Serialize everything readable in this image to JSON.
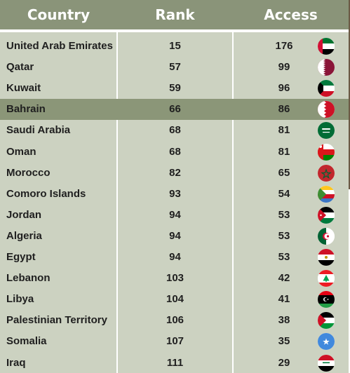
{
  "header": {
    "country": "Country",
    "rank": "Rank",
    "access": "Access"
  },
  "rows": [
    {
      "country": "United Arab Emirates",
      "rank": "15",
      "access": "176",
      "flag": "uae-flag-icon"
    },
    {
      "country": "Qatar",
      "rank": "57",
      "access": "99",
      "flag": "qatar-flag-icon"
    },
    {
      "country": "Kuwait",
      "rank": "59",
      "access": "96",
      "flag": "kuwait-flag-icon"
    },
    {
      "country": "Bahrain",
      "rank": "66",
      "access": "86",
      "flag": "bahrain-flag-icon",
      "highlighted": true
    },
    {
      "country": "Saudi Arabia",
      "rank": "68",
      "access": "81",
      "flag": "saudi-arabia-flag-icon"
    },
    {
      "country": "Oman",
      "rank": "68",
      "access": "81",
      "flag": "oman-flag-icon"
    },
    {
      "country": "Morocco",
      "rank": "82",
      "access": "65",
      "flag": "morocco-flag-icon"
    },
    {
      "country": "Comoro Islands",
      "rank": "93",
      "access": "54",
      "flag": "comoros-flag-icon"
    },
    {
      "country": "Jordan",
      "rank": "94",
      "access": "53",
      "flag": "jordan-flag-icon"
    },
    {
      "country": "Algeria",
      "rank": "94",
      "access": "53",
      "flag": "algeria-flag-icon"
    },
    {
      "country": "Egypt",
      "rank": "94",
      "access": "53",
      "flag": "egypt-flag-icon"
    },
    {
      "country": "Lebanon",
      "rank": "103",
      "access": "42",
      "flag": "lebanon-flag-icon"
    },
    {
      "country": "Libya",
      "rank": "104",
      "access": "41",
      "flag": "libya-flag-icon"
    },
    {
      "country": "Palestinian Territory",
      "rank": "106",
      "access": "38",
      "flag": "palestine-flag-icon"
    },
    {
      "country": "Somalia",
      "rank": "107",
      "access": "35",
      "flag": "somalia-flag-icon"
    },
    {
      "country": "Iraq",
      "rank": "111",
      "access": "29",
      "flag": "iraq-flag-icon"
    }
  ],
  "colors": {
    "header_bg": "#8a9479",
    "body_bg": "#ccd2c1",
    "highlight_bg": "#8b9678",
    "text": "#1f1f1f"
  }
}
